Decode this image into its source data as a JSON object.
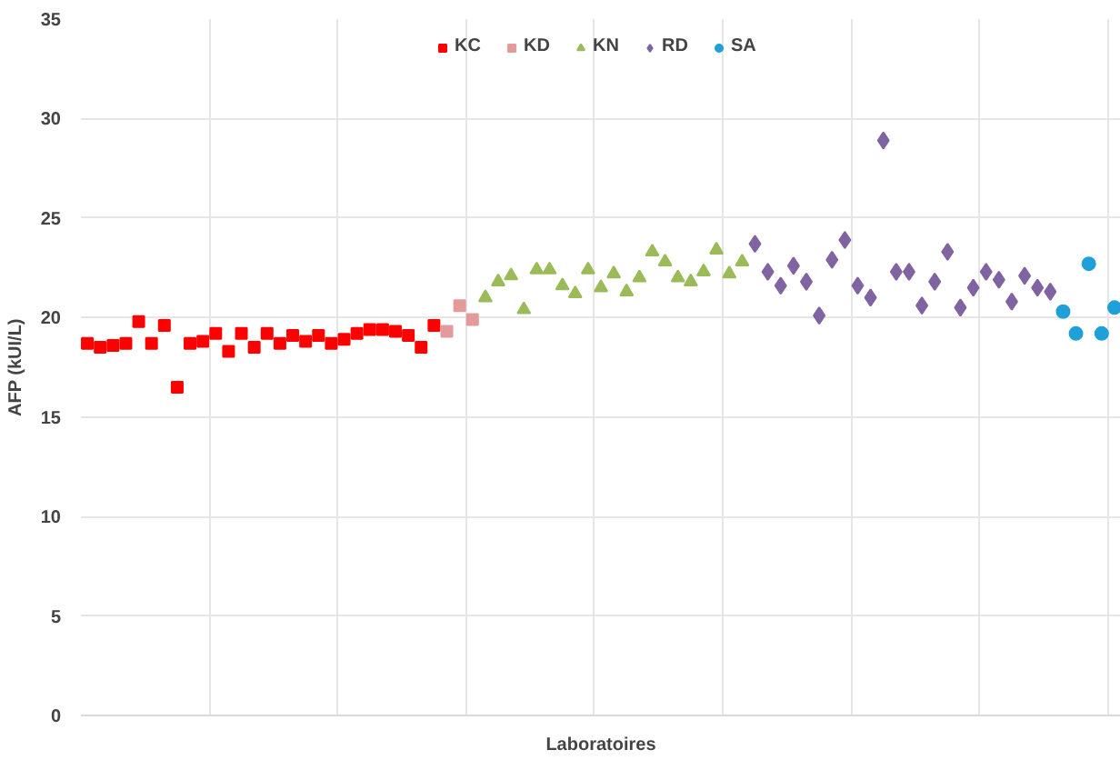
{
  "chart_data": {
    "type": "scatter",
    "xlabel": "Laboratoires",
    "ylabel": "AFP (kUI/L)",
    "categories": [
      null,
      null,
      null,
      null,
      null,
      null,
      null,
      null,
      null,
      null,
      null,
      null,
      null,
      null,
      null,
      null,
      null,
      null,
      null,
      null,
      null,
      null,
      null,
      null,
      null,
      null,
      null,
      null,
      null,
      null,
      null,
      null,
      null,
      null,
      null,
      null,
      null,
      null,
      null,
      null,
      null,
      null,
      null,
      null,
      null,
      null,
      null,
      null,
      null,
      null,
      null,
      null,
      null,
      null,
      null,
      null,
      null,
      null,
      null,
      null,
      null,
      null,
      null,
      null,
      null,
      null,
      null,
      null,
      null,
      null,
      null,
      null,
      null,
      null,
      null,
      null,
      null,
      null,
      null,
      null,
      null
    ],
    "ylim": [
      0,
      35
    ],
    "yticks": [
      0,
      5,
      10,
      15,
      20,
      25,
      30,
      35
    ],
    "grid": true,
    "legend": "top",
    "series": [
      {
        "name": "KC",
        "color": "#ff0000",
        "marker": "square",
        "values": [
          18.7,
          18.5,
          18.6,
          18.7,
          19.8,
          18.7,
          19.6,
          16.5,
          18.7,
          18.8,
          19.2,
          18.3,
          19.2,
          18.5,
          19.2,
          18.7,
          19.1,
          18.8,
          19.1,
          18.7,
          18.9,
          19.2,
          19.4,
          19.4,
          19.3,
          19.1,
          18.5,
          19.6,
          null,
          null,
          null,
          null,
          null,
          null,
          null,
          null,
          null,
          null,
          null,
          null,
          null,
          null,
          null,
          null,
          null,
          null,
          null,
          null,
          null,
          null,
          null,
          null,
          null,
          null,
          null,
          null,
          null,
          null,
          null,
          null,
          null,
          null,
          null,
          null,
          null,
          null,
          null,
          null,
          null,
          null,
          null,
          null,
          null,
          null,
          null,
          null,
          null,
          null,
          null,
          null,
          null
        ]
      },
      {
        "name": "KD",
        "color": "#e39a9a",
        "marker": "square",
        "values": [
          null,
          null,
          null,
          null,
          null,
          null,
          null,
          null,
          null,
          null,
          null,
          null,
          null,
          null,
          null,
          null,
          null,
          null,
          null,
          null,
          null,
          null,
          null,
          null,
          null,
          null,
          null,
          null,
          19.3,
          20.6,
          19.9,
          null,
          null,
          null,
          null,
          null,
          null,
          null,
          null,
          null,
          null,
          null,
          null,
          null,
          null,
          null,
          null,
          null,
          null,
          null,
          null,
          null,
          null,
          null,
          null,
          null,
          null,
          null,
          null,
          null,
          null,
          null,
          null,
          null,
          null,
          null,
          null,
          null,
          null,
          null,
          null,
          null,
          null,
          null,
          null,
          null,
          null,
          null,
          null,
          null,
          null
        ]
      },
      {
        "name": "KN",
        "color": "#9bbb59",
        "marker": "triangle",
        "values": [
          null,
          null,
          null,
          null,
          null,
          null,
          null,
          null,
          null,
          null,
          null,
          null,
          null,
          null,
          null,
          null,
          null,
          null,
          null,
          null,
          null,
          null,
          null,
          null,
          null,
          null,
          null,
          null,
          null,
          null,
          null,
          21.0,
          21.8,
          22.1,
          20.4,
          22.4,
          22.4,
          21.6,
          21.2,
          22.4,
          21.5,
          22.2,
          21.3,
          22.0,
          23.3,
          22.8,
          22.0,
          21.8,
          22.3,
          23.4,
          22.2,
          22.8,
          null,
          null,
          null,
          null,
          null,
          null,
          null,
          null,
          null,
          null,
          null,
          null,
          null,
          null,
          null,
          null,
          null,
          null,
          null,
          null,
          null,
          null,
          null,
          null,
          null,
          null,
          null,
          null,
          null
        ]
      },
      {
        "name": "RD",
        "color": "#8064a2",
        "marker": "diamond",
        "values": [
          null,
          null,
          null,
          null,
          null,
          null,
          null,
          null,
          null,
          null,
          null,
          null,
          null,
          null,
          null,
          null,
          null,
          null,
          null,
          null,
          null,
          null,
          null,
          null,
          null,
          null,
          null,
          null,
          null,
          null,
          null,
          null,
          null,
          null,
          null,
          null,
          null,
          null,
          null,
          null,
          null,
          null,
          null,
          null,
          null,
          null,
          null,
          null,
          null,
          null,
          null,
          null,
          23.7,
          22.3,
          21.6,
          22.6,
          21.8,
          20.1,
          22.9,
          23.9,
          21.6,
          21.0,
          28.9,
          22.3,
          22.3,
          20.6,
          21.8,
          23.3,
          20.5,
          21.5,
          22.3,
          21.9,
          20.8,
          22.1,
          21.5,
          21.3,
          null,
          null,
          null,
          null,
          null
        ]
      },
      {
        "name": "SA",
        "color": "#1fa0d8",
        "marker": "circle",
        "values": [
          null,
          null,
          null,
          null,
          null,
          null,
          null,
          null,
          null,
          null,
          null,
          null,
          null,
          null,
          null,
          null,
          null,
          null,
          null,
          null,
          null,
          null,
          null,
          null,
          null,
          null,
          null,
          null,
          null,
          null,
          null,
          null,
          null,
          null,
          null,
          null,
          null,
          null,
          null,
          null,
          null,
          null,
          null,
          null,
          null,
          null,
          null,
          null,
          null,
          null,
          null,
          null,
          null,
          null,
          null,
          null,
          null,
          null,
          null,
          null,
          null,
          null,
          null,
          null,
          null,
          null,
          null,
          null,
          null,
          null,
          null,
          null,
          null,
          null,
          null,
          null,
          20.3,
          19.2,
          22.7,
          19.2,
          20.5
        ]
      }
    ]
  }
}
